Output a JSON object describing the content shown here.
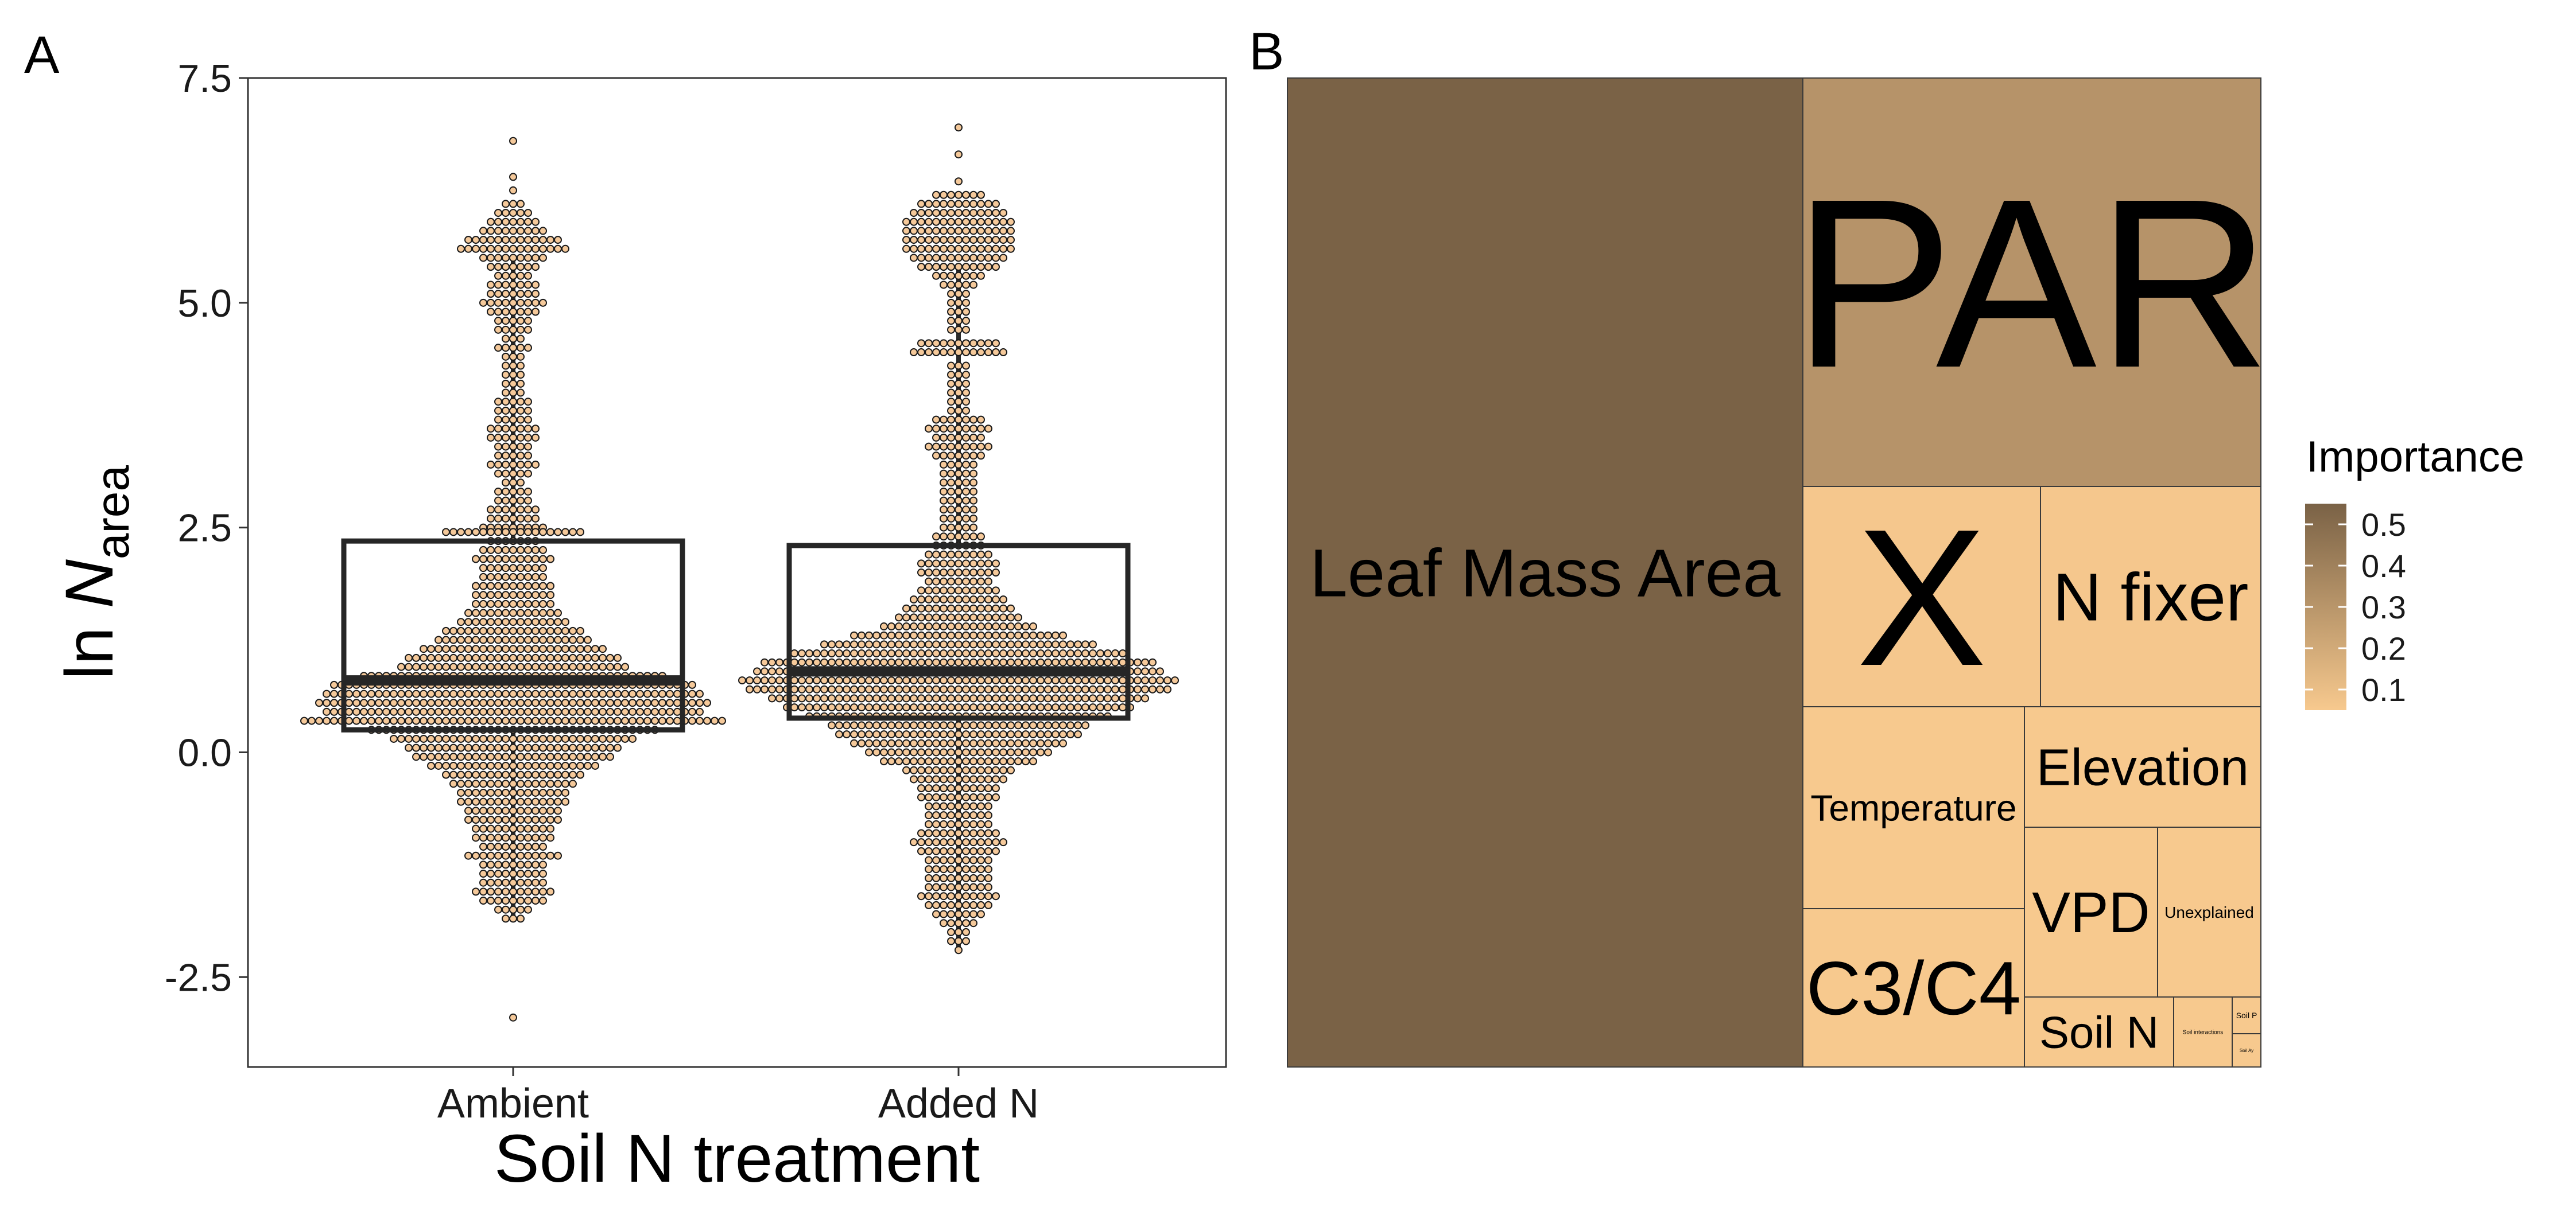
{
  "panels": {
    "a": "A",
    "b": "B"
  },
  "chart_data": [
    {
      "type": "box-dotplot",
      "panel": "A",
      "xlabel": "Soil N treatment",
      "ylabel_main": "ln N",
      "ylabel_sub": "area",
      "categories": [
        "Ambient",
        "Added N"
      ],
      "ylim": [
        -3.5,
        7.5
      ],
      "yticks": [
        7.5,
        5.0,
        2.5,
        0.0,
        -2.5
      ],
      "ytick_labels": [
        "7.5",
        "5.0",
        "2.5",
        "0.0",
        "-2.5"
      ],
      "boxes": [
        {
          "category": "Ambient",
          "q1": 0.25,
          "median": 0.8,
          "q3": 2.35,
          "whisker_low": -1.85,
          "whisker_high": 5.5
        },
        {
          "category": "Added N",
          "q1": 0.38,
          "median": 0.9,
          "q3": 2.3,
          "whisker_low": -2.2,
          "whisker_high": 5.4
        }
      ],
      "point_color": "#f5c99a",
      "point_stroke": "#1a1a1a",
      "distributions": [
        {
          "category": "Ambient",
          "bins": [
            [
              6.8,
              1
            ],
            [
              6.4,
              1
            ],
            [
              6.25,
              1
            ],
            [
              6.1,
              3
            ],
            [
              6.0,
              5
            ],
            [
              5.9,
              7
            ],
            [
              5.8,
              9
            ],
            [
              5.7,
              13
            ],
            [
              5.6,
              15
            ],
            [
              5.5,
              9
            ],
            [
              5.4,
              7
            ],
            [
              5.3,
              5
            ],
            [
              5.2,
              7
            ],
            [
              5.1,
              7
            ],
            [
              5.0,
              9
            ],
            [
              4.9,
              7
            ],
            [
              4.8,
              5
            ],
            [
              4.7,
              5
            ],
            [
              4.6,
              3
            ],
            [
              4.5,
              5
            ],
            [
              4.4,
              3
            ],
            [
              4.3,
              3
            ],
            [
              4.2,
              3
            ],
            [
              4.1,
              3
            ],
            [
              4.0,
              3
            ],
            [
              3.9,
              5
            ],
            [
              3.8,
              5
            ],
            [
              3.7,
              5
            ],
            [
              3.6,
              7
            ],
            [
              3.5,
              7
            ],
            [
              3.4,
              5
            ],
            [
              3.3,
              5
            ],
            [
              3.2,
              7
            ],
            [
              3.1,
              5
            ],
            [
              3.0,
              3
            ],
            [
              2.9,
              5
            ],
            [
              2.8,
              5
            ],
            [
              2.7,
              7
            ],
            [
              2.6,
              7
            ],
            [
              2.5,
              9
            ],
            [
              2.45,
              19
            ],
            [
              2.35,
              7
            ],
            [
              2.25,
              9
            ],
            [
              2.15,
              11
            ],
            [
              2.05,
              9
            ],
            [
              1.95,
              9
            ],
            [
              1.85,
              11
            ],
            [
              1.75,
              11
            ],
            [
              1.65,
              11
            ],
            [
              1.55,
              13
            ],
            [
              1.45,
              15
            ],
            [
              1.35,
              19
            ],
            [
              1.25,
              21
            ],
            [
              1.15,
              25
            ],
            [
              1.05,
              29
            ],
            [
              0.95,
              31
            ],
            [
              0.85,
              41
            ],
            [
              0.75,
              49
            ],
            [
              0.65,
              51
            ],
            [
              0.55,
              53
            ],
            [
              0.45,
              51
            ],
            [
              0.35,
              57
            ],
            [
              0.25,
              39
            ],
            [
              0.15,
              33
            ],
            [
              0.05,
              29
            ],
            [
              -0.05,
              27
            ],
            [
              -0.15,
              23
            ],
            [
              -0.25,
              19
            ],
            [
              -0.35,
              17
            ],
            [
              -0.45,
              15
            ],
            [
              -0.55,
              15
            ],
            [
              -0.65,
              13
            ],
            [
              -0.75,
              13
            ],
            [
              -0.85,
              11
            ],
            [
              -0.95,
              11
            ],
            [
              -1.05,
              9
            ],
            [
              -1.15,
              13
            ],
            [
              -1.25,
              9
            ],
            [
              -1.35,
              9
            ],
            [
              -1.45,
              9
            ],
            [
              -1.55,
              11
            ],
            [
              -1.65,
              9
            ],
            [
              -1.75,
              5
            ],
            [
              -1.85,
              3
            ],
            [
              -2.95,
              1
            ]
          ]
        },
        {
          "category": "Added N",
          "bins": [
            [
              6.95,
              1
            ],
            [
              6.65,
              1
            ],
            [
              6.35,
              1
            ],
            [
              6.2,
              7
            ],
            [
              6.1,
              11
            ],
            [
              6.0,
              13
            ],
            [
              5.9,
              15
            ],
            [
              5.8,
              15
            ],
            [
              5.7,
              15
            ],
            [
              5.6,
              15
            ],
            [
              5.5,
              13
            ],
            [
              5.4,
              11
            ],
            [
              5.3,
              7
            ],
            [
              5.2,
              5
            ],
            [
              5.1,
              3
            ],
            [
              5.0,
              3
            ],
            [
              4.9,
              3
            ],
            [
              4.8,
              3
            ],
            [
              4.7,
              3
            ],
            [
              4.55,
              11
            ],
            [
              4.45,
              13
            ],
            [
              4.3,
              3
            ],
            [
              4.2,
              3
            ],
            [
              4.1,
              3
            ],
            [
              4.0,
              3
            ],
            [
              3.9,
              3
            ],
            [
              3.8,
              3
            ],
            [
              3.7,
              7
            ],
            [
              3.6,
              9
            ],
            [
              3.5,
              7
            ],
            [
              3.4,
              9
            ],
            [
              3.3,
              7
            ],
            [
              3.2,
              5
            ],
            [
              3.1,
              5
            ],
            [
              3.0,
              5
            ],
            [
              2.9,
              5
            ],
            [
              2.8,
              5
            ],
            [
              2.7,
              5
            ],
            [
              2.6,
              5
            ],
            [
              2.5,
              5
            ],
            [
              2.4,
              7
            ],
            [
              2.3,
              7
            ],
            [
              2.2,
              9
            ],
            [
              2.1,
              11
            ],
            [
              2.0,
              11
            ],
            [
              1.9,
              9
            ],
            [
              1.8,
              11
            ],
            [
              1.7,
              13
            ],
            [
              1.6,
              15
            ],
            [
              1.5,
              17
            ],
            [
              1.4,
              21
            ],
            [
              1.3,
              29
            ],
            [
              1.2,
              37
            ],
            [
              1.1,
              45
            ],
            [
              1.0,
              53
            ],
            [
              0.9,
              55
            ],
            [
              0.8,
              59
            ],
            [
              0.7,
              57
            ],
            [
              0.6,
              51
            ],
            [
              0.5,
              47
            ],
            [
              0.4,
              41
            ],
            [
              0.3,
              35
            ],
            [
              0.2,
              33
            ],
            [
              0.1,
              29
            ],
            [
              0.0,
              25
            ],
            [
              -0.1,
              21
            ],
            [
              -0.2,
              15
            ],
            [
              -0.3,
              13
            ],
            [
              -0.4,
              11
            ],
            [
              -0.5,
              11
            ],
            [
              -0.6,
              9
            ],
            [
              -0.7,
              9
            ],
            [
              -0.8,
              9
            ],
            [
              -0.9,
              11
            ],
            [
              -1.0,
              13
            ],
            [
              -1.1,
              11
            ],
            [
              -1.2,
              9
            ],
            [
              -1.3,
              9
            ],
            [
              -1.4,
              9
            ],
            [
              -1.5,
              9
            ],
            [
              -1.6,
              11
            ],
            [
              -1.7,
              9
            ],
            [
              -1.8,
              7
            ],
            [
              -1.9,
              5
            ],
            [
              -2.0,
              3
            ],
            [
              -2.1,
              3
            ],
            [
              -2.2,
              1
            ]
          ]
        }
      ]
    },
    {
      "type": "treemap",
      "panel": "B",
      "legend_title": "Importance",
      "legend_ticks": [
        "0.5",
        "0.4",
        "0.3",
        "0.2",
        "0.1"
      ],
      "legend_tick_values": [
        0.5,
        0.4,
        0.3,
        0.2,
        0.1
      ],
      "color_range": [
        0.05,
        0.55
      ],
      "color_low": "#f7c98e",
      "color_high": "#7a6246",
      "items": [
        {
          "label": "Leaf Mass Area",
          "importance": 0.55
        },
        {
          "label": "PAR",
          "importance": 0.31
        },
        {
          "label": "X",
          "importance": 0.06
        },
        {
          "label": "N fixer",
          "importance": 0.06
        },
        {
          "label": "Temperature",
          "importance": 0.05
        },
        {
          "label": "Elevation",
          "importance": 0.04
        },
        {
          "label": "C3/C4",
          "importance": 0.05
        },
        {
          "label": "VPD",
          "importance": 0.04
        },
        {
          "label": "Unexplained",
          "importance": 0.02
        },
        {
          "label": "Soil N",
          "importance": 0.03
        },
        {
          "label": "Soil interactions",
          "importance": 0.01
        },
        {
          "label": "Soil P",
          "importance": 0.005
        },
        {
          "label": "Soil Ay",
          "importance": 0.004
        }
      ]
    }
  ]
}
